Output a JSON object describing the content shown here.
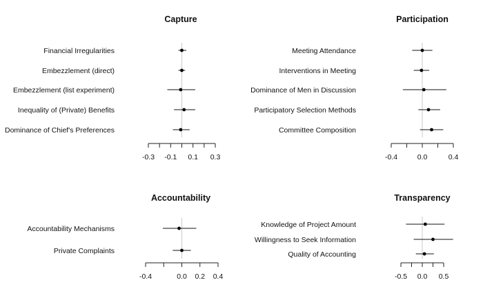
{
  "chart_data": [
    {
      "type": "scatter",
      "subtype": "coefficient-plot",
      "title": "Capture",
      "xlim": [
        -0.3,
        0.3
      ],
      "ticks": [
        -0.3,
        -0.2,
        -0.1,
        0,
        0.1,
        0.2,
        0.3
      ],
      "tick_labels": [
        {
          "value": -0.3,
          "label": "-0.3"
        },
        {
          "value": -0.1,
          "label": "-0.1"
        },
        {
          "value": 0.1,
          "label": "0.1"
        },
        {
          "value": 0.3,
          "label": "0.3"
        }
      ],
      "reference_line": 0,
      "items": [
        {
          "label": "Financial Irregularities",
          "estimate": 0.0,
          "low": -0.03,
          "high": 0.04
        },
        {
          "label": "Embezzlement (direct)",
          "estimate": 0.0,
          "low": -0.03,
          "high": 0.03
        },
        {
          "label": "Embezzlement (list experiment)",
          "estimate": -0.01,
          "low": -0.13,
          "high": 0.12
        },
        {
          "label": "Inequality of (Private) Benefits",
          "estimate": 0.02,
          "low": -0.07,
          "high": 0.12
        },
        {
          "label": "Dominance of Chief's Preferences",
          "estimate": -0.01,
          "low": -0.08,
          "high": 0.07
        }
      ]
    },
    {
      "type": "scatter",
      "subtype": "coefficient-plot",
      "title": "Participation",
      "xlim": [
        -0.4,
        0.4
      ],
      "ticks": [
        -0.4,
        -0.2,
        0,
        0.2,
        0.4
      ],
      "tick_labels": [
        {
          "value": -0.4,
          "label": "-0.4"
        },
        {
          "value": 0,
          "label": "0.0"
        },
        {
          "value": 0.4,
          "label": "0.4"
        }
      ],
      "reference_line": 0,
      "items": [
        {
          "label": "Meeting Attendance",
          "estimate": 0.0,
          "low": -0.13,
          "high": 0.13
        },
        {
          "label": "Interventions in Meeting",
          "estimate": -0.01,
          "low": -0.11,
          "high": 0.09
        },
        {
          "label": "Dominance of Men in Discussion",
          "estimate": 0.02,
          "low": -0.25,
          "high": 0.31
        },
        {
          "label": "Participatory Selection Methods",
          "estimate": 0.08,
          "low": -0.05,
          "high": 0.23
        },
        {
          "label": "Committee Composition",
          "estimate": 0.12,
          "low": -0.03,
          "high": 0.27
        }
      ]
    },
    {
      "type": "scatter",
      "subtype": "coefficient-plot",
      "title": "Accountability",
      "xlim": [
        -0.4,
        0.4
      ],
      "ticks": [
        -0.4,
        -0.2,
        0,
        0.2,
        0.4
      ],
      "tick_labels": [
        {
          "value": -0.4,
          "label": "-0.4"
        },
        {
          "value": 0,
          "label": "0.0"
        },
        {
          "value": 0.2,
          "label": "0.2"
        },
        {
          "value": 0.4,
          "label": "0.4"
        }
      ],
      "reference_line": 0,
      "items": [
        {
          "label": "Accountability Mechanisms",
          "estimate": -0.03,
          "low": -0.21,
          "high": 0.16
        },
        {
          "label": "Private Complaints",
          "estimate": 0.0,
          "low": -0.1,
          "high": 0.1
        }
      ]
    },
    {
      "type": "scatter",
      "subtype": "coefficient-plot",
      "title": "Transparency",
      "xlim": [
        -0.5,
        0.5
      ],
      "ticks": [
        -0.5,
        -0.25,
        0,
        0.25,
        0.5
      ],
      "tick_labels": [
        {
          "value": -0.5,
          "label": "-0.5"
        },
        {
          "value": 0,
          "label": "0.0"
        },
        {
          "value": 0.5,
          "label": "0.5"
        }
      ],
      "reference_line": 0,
      "items": [
        {
          "label": "Knowledge of Project Amount",
          "estimate": 0.07,
          "low": -0.38,
          "high": 0.52
        },
        {
          "label": "Willingness to Seek Information",
          "estimate": 0.25,
          "low": -0.2,
          "high": 0.72
        },
        {
          "label": "Quality of Accounting",
          "estimate": 0.05,
          "low": -0.15,
          "high": 0.27
        }
      ]
    }
  ]
}
